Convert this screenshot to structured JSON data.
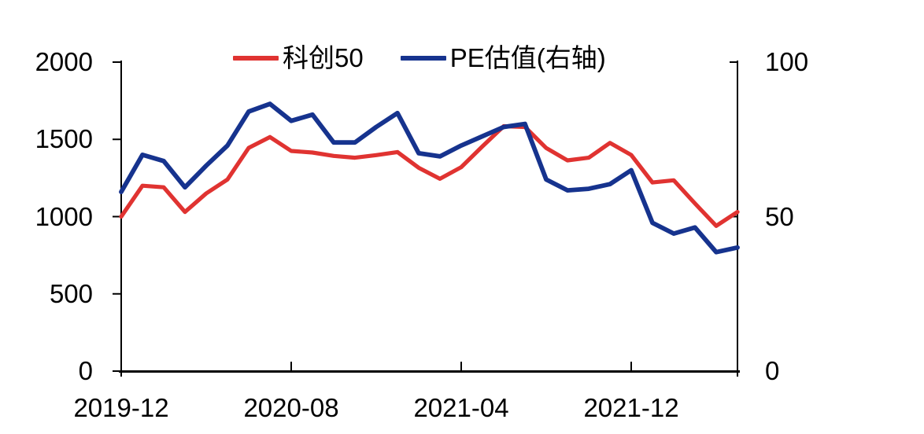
{
  "chart_data": {
    "type": "line",
    "x": [
      "2019-12",
      "2020-01",
      "2020-02",
      "2020-03",
      "2020-04",
      "2020-05",
      "2020-06",
      "2020-07",
      "2020-08",
      "2020-09",
      "2020-10",
      "2020-11",
      "2020-12",
      "2021-01",
      "2021-02",
      "2021-03",
      "2021-04",
      "2021-05",
      "2021-06",
      "2021-07",
      "2021-08",
      "2021-09",
      "2021-10",
      "2021-11",
      "2021-12",
      "2022-01",
      "2022-02",
      "2022-03",
      "2022-04",
      "2022-05"
    ],
    "series": [
      {
        "name": "科创50",
        "axis": "left",
        "color": "#E03331",
        "values": [
          1000,
          1200,
          1190,
          1030,
          1150,
          1240,
          1445,
          1515,
          1425,
          1415,
          1393,
          1381,
          1398,
          1418,
          1316,
          1245,
          1320,
          1455,
          1585,
          1580,
          1444,
          1364,
          1381,
          1477,
          1399,
          1221,
          1235,
          1085,
          940,
          1030
        ]
      },
      {
        "name": "PE估值(右轴)",
        "axis": "right",
        "color": "#16338E",
        "values": [
          58,
          70,
          68,
          59.5,
          66.5,
          73,
          84,
          86.5,
          81,
          83,
          74,
          74,
          79,
          83.5,
          70.5,
          69.5,
          73,
          76,
          79,
          80,
          62,
          58.5,
          59,
          60.5,
          65,
          48,
          44.5,
          46.5,
          38.5,
          40
        ]
      }
    ],
    "left_axis": {
      "min": 0,
      "max": 2000,
      "ticks": [
        0,
        500,
        1000,
        1500,
        2000
      ]
    },
    "right_axis": {
      "min": 0,
      "max": 100,
      "ticks": [
        0,
        50,
        100
      ]
    },
    "x_axis": {
      "tick_labels": [
        "2019-12",
        "2020-08",
        "2021-04",
        "2021-12"
      ],
      "tick_indices": [
        0,
        8,
        16,
        24
      ]
    },
    "legend_position": "top-center",
    "grid": false,
    "background_color": "#FFFFFF",
    "axis_color": "#000000"
  }
}
